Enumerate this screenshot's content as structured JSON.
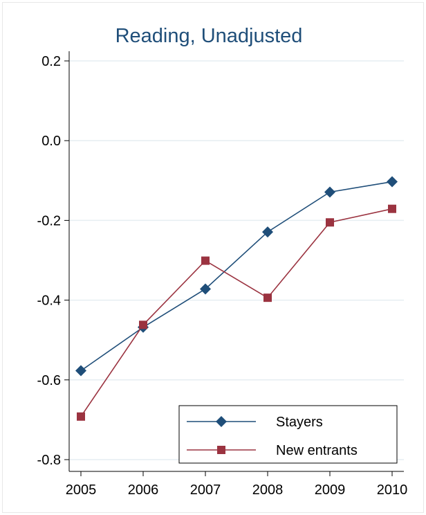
{
  "chart_data": {
    "type": "line",
    "title": "Reading, Unadjusted",
    "xlabel": "",
    "ylabel": "",
    "x": [
      2005,
      2006,
      2007,
      2008,
      2009,
      2010
    ],
    "x_ticks": [
      "2005",
      "2006",
      "2007",
      "2008",
      "2009",
      "2010"
    ],
    "ylim": [
      -0.82,
      0.22
    ],
    "y_ticks": [
      0.2,
      0.0,
      -0.2,
      -0.4,
      -0.6,
      -0.8
    ],
    "y_tick_labels": [
      "0.2",
      "0.0",
      "-0.2",
      "-0.4",
      "-0.6",
      "-0.8"
    ],
    "grid": true,
    "legend_position": "bottom-right",
    "series": [
      {
        "name": "Stayers",
        "color": "#1f4e79",
        "marker": "diamond",
        "values": [
          -0.577,
          -0.468,
          -0.372,
          -0.229,
          -0.129,
          -0.103
        ]
      },
      {
        "name": "New entrants",
        "color": "#9b3340",
        "marker": "square",
        "values": [
          -0.692,
          -0.462,
          -0.301,
          -0.394,
          -0.205,
          -0.171
        ]
      }
    ]
  },
  "colors": {
    "title": "#1f4e79",
    "grid": "#e6eef2",
    "axis": "#000000"
  }
}
